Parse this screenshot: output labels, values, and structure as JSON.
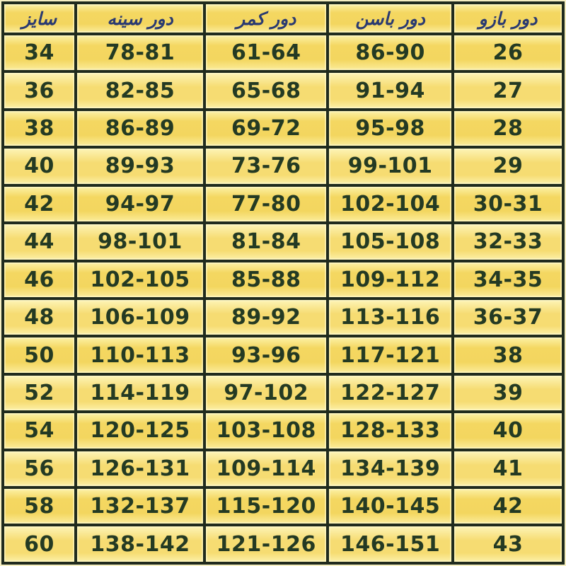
{
  "chart_data": {
    "type": "table",
    "columns": [
      {
        "key": "size",
        "label": "سایز"
      },
      {
        "key": "bust",
        "label": "دور سینه"
      },
      {
        "key": "waist",
        "label": "دور کمر"
      },
      {
        "key": "hip",
        "label": "دور باسن"
      },
      {
        "key": "arm",
        "label": "دور بازو"
      }
    ],
    "rows": [
      [
        "34",
        "78-81",
        "61-64",
        "86-90",
        "26"
      ],
      [
        "36",
        "82-85",
        "65-68",
        "91-94",
        "27"
      ],
      [
        "38",
        "86-89",
        "69-72",
        "95-98",
        "28"
      ],
      [
        "40",
        "89-93",
        "73-76",
        "99-101",
        "29"
      ],
      [
        "42",
        "94-97",
        "77-80",
        "102-104",
        "30-31"
      ],
      [
        "44",
        "98-101",
        "81-84",
        "105-108",
        "32-33"
      ],
      [
        "46",
        "102-105",
        "85-88",
        "109-112",
        "34-35"
      ],
      [
        "48",
        "106-109",
        "89-92",
        "113-116",
        "36-37"
      ],
      [
        "50",
        "110-113",
        "93-96",
        "117-121",
        "38"
      ],
      [
        "52",
        "114-119",
        "97-102",
        "122-127",
        "39"
      ],
      [
        "54",
        "120-125",
        "103-108",
        "128-133",
        "40"
      ],
      [
        "56",
        "126-131",
        "109-114",
        "134-139",
        "41"
      ],
      [
        "58",
        "132-137",
        "115-120",
        "140-145",
        "42"
      ],
      [
        "60",
        "138-142",
        "121-126",
        "146-151",
        "43"
      ]
    ],
    "layout": {
      "column_widths_pct": [
        13,
        23,
        22,
        22.3,
        19.7
      ],
      "direction": "rtl-labels",
      "grid": "on",
      "header_row": true
    },
    "colors": {
      "cell_gold": "#f4d761",
      "cell_light": "#fdf4b6",
      "border": "#202b1e",
      "header_text": "#2a3a71",
      "value_text": "#243a23",
      "page_edge": "#f6efc2"
    }
  }
}
